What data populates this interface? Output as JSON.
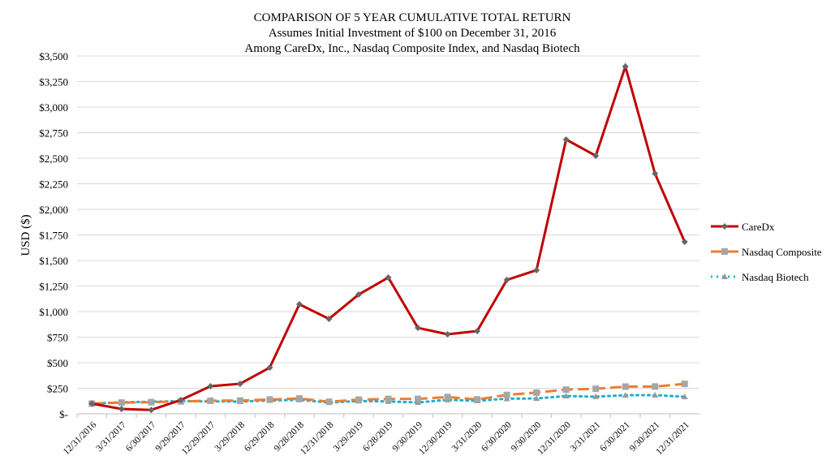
{
  "chart_data": {
    "type": "line",
    "title": [
      "COMPARISON OF 5 YEAR CUMULATIVE TOTAL RETURN",
      "Assumes Initial Investment of $100 on December 31, 2016",
      "Among CareDx, Inc., Nasdaq Composite Index, and Nasdaq Biotech"
    ],
    "ylabel": "USD ($)",
    "xlabel": "",
    "ylim": [
      0,
      3500
    ],
    "yticks": [
      0,
      250,
      500,
      750,
      1000,
      1250,
      1500,
      1750,
      2000,
      2250,
      2500,
      2750,
      3000,
      3250,
      3500
    ],
    "ytick_labels": [
      "$-",
      "$250",
      "$500",
      "$750",
      "$1,000",
      "$1,250",
      "$1,500",
      "$1,750",
      "$2,000",
      "$2,250",
      "$2,500",
      "$2,750",
      "$3,000",
      "$3,250",
      "$3,500"
    ],
    "grid": "horizontal",
    "legend": "right",
    "categories": [
      "12/31/2016",
      "3/31/2017",
      "6/30/2017",
      "9/29/2017",
      "12/29/2017",
      "3/29/2018",
      "6/29/2018",
      "9/28/2018",
      "12/31/2018",
      "3/29/2019",
      "6/28/2019",
      "9/30/2019",
      "12/30/2019",
      "3/31/2020",
      "6/30/2020",
      "9/30/2020",
      "12/31/2020",
      "3/31/2021",
      "6/30/2021",
      "9/30/2021",
      "12/31/2021"
    ],
    "series": [
      {
        "name": "CareDx",
        "color": "#C00000",
        "style": "solid",
        "marker": "diamond",
        "values": [
          100,
          48,
          38,
          135,
          270,
          294,
          452,
          1071,
          929,
          1167,
          1333,
          841,
          778,
          810,
          1310,
          1405,
          2683,
          2524,
          3397,
          2349,
          1683
        ]
      },
      {
        "name": "Nasdaq Composite",
        "color": "#ED7D31",
        "style": "dashed",
        "marker": "square",
        "values": [
          100,
          110,
          114,
          121,
          128,
          130,
          140,
          150,
          118,
          139,
          146,
          146,
          164,
          141,
          185,
          208,
          237,
          245,
          266,
          267,
          293
        ]
      },
      {
        "name": "Nasdaq Biotech",
        "color": "#1AAFD0",
        "style": "dotted",
        "marker": "triangle",
        "values": [
          100,
          113,
          118,
          125,
          121,
          120,
          130,
          137,
          110,
          125,
          121,
          111,
          137,
          127,
          148,
          150,
          174,
          168,
          182,
          183,
          167
        ]
      }
    ]
  }
}
